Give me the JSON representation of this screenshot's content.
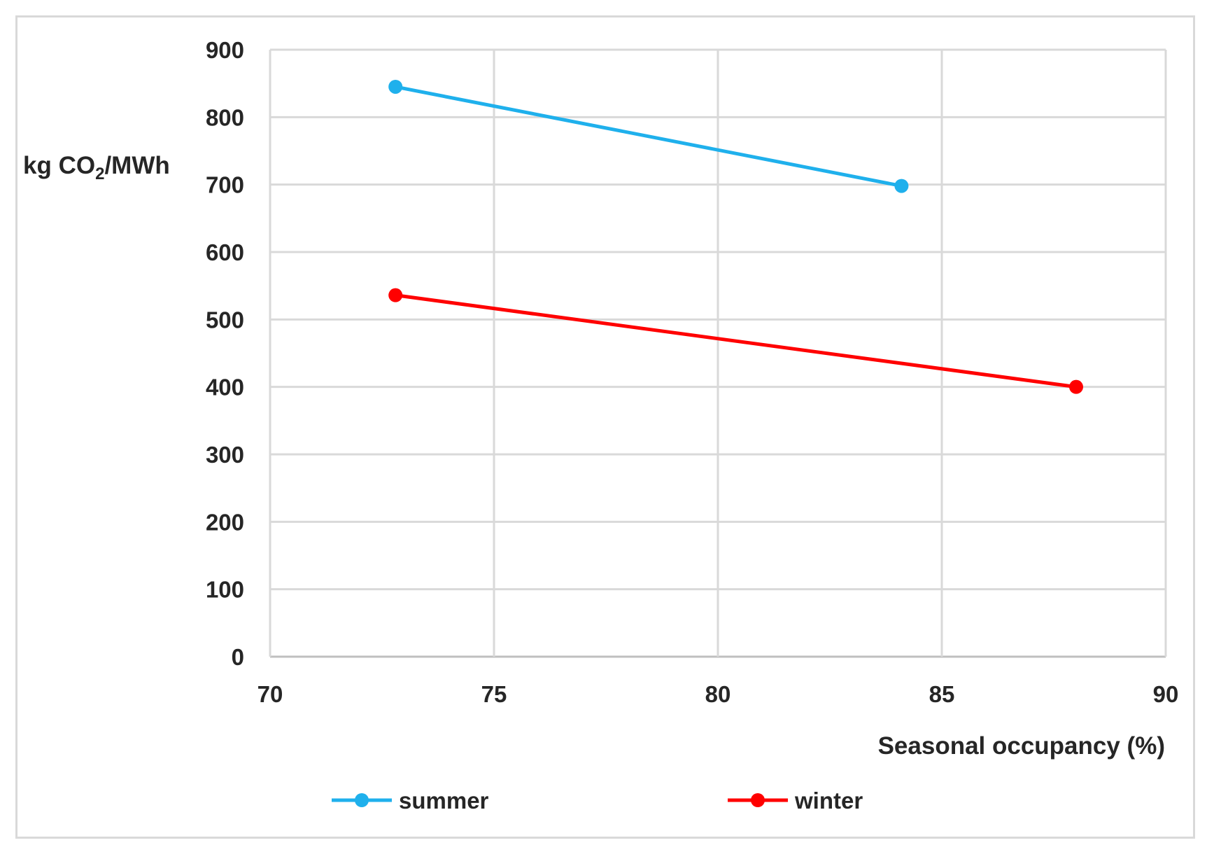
{
  "chart_data": {
    "type": "line",
    "title": "",
    "xlabel": "Seasonal occupancy (%)",
    "ylabel_parts": [
      "kg CO",
      "2",
      "/MWh"
    ],
    "xlim": [
      70,
      90
    ],
    "ylim": [
      0,
      900
    ],
    "xticks": [
      "70",
      "75",
      "80",
      "85",
      "90"
    ],
    "yticks": [
      "0",
      "100",
      "200",
      "300",
      "400",
      "500",
      "600",
      "700",
      "800",
      "900"
    ],
    "grid": true,
    "legend_position": "bottom",
    "series": [
      {
        "name": "summer",
        "color": "#1fb0ec",
        "x": [
          72.8,
          84.1
        ],
        "y": [
          845,
          698
        ]
      },
      {
        "name": "winter",
        "color": "#ff0000",
        "x": [
          72.8,
          88.0
        ],
        "y": [
          536,
          400
        ]
      }
    ]
  }
}
